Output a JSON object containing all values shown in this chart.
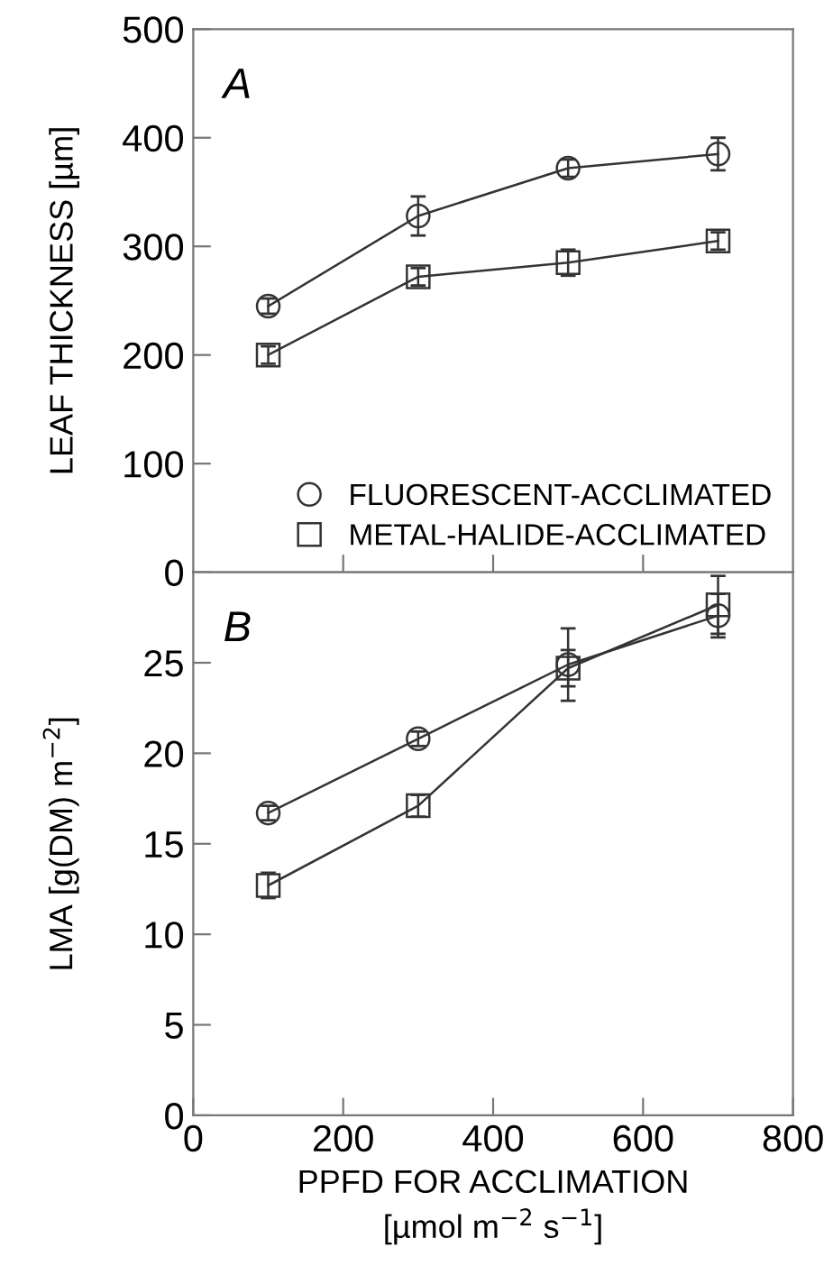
{
  "chart_data": [
    {
      "type": "line",
      "ylabel": "LEAF THICKNESS [µm]",
      "annotations": [
        "A"
      ],
      "x": [
        100,
        300,
        500,
        700
      ],
      "xlim": [
        0,
        800
      ],
      "xticks": [
        {
          "value": 200,
          "label": null
        },
        {
          "value": 400,
          "label": null
        },
        {
          "value": 600,
          "label": null
        }
      ],
      "ylim": [
        0,
        500
      ],
      "yticks": [
        0,
        100,
        200,
        300,
        400,
        500
      ],
      "tick_labels": "y",
      "legend": "bottom",
      "grid": false,
      "line_style": "solid",
      "series": [
        {
          "name": "FLUORESCENT-ACCLIMATED",
          "color": "#333333",
          "marker": "circle",
          "values": [
            245,
            328,
            372,
            385
          ],
          "errors": [
            7,
            18,
            8,
            15
          ]
        },
        {
          "name": "METAL-HALIDE-ACCLIMATED",
          "color": "#333333",
          "marker": "square",
          "values": [
            200,
            272,
            285,
            305
          ],
          "errors": [
            8,
            8,
            12,
            8
          ]
        }
      ]
    },
    {
      "type": "line",
      "ylabel": "LMA [g(DM) m$^{−2}$]",
      "xlabel": "PPFD FOR ACCLIMATION\n[µmol m$^{−2}$ s$^{−1}$]",
      "annotations": [
        "B"
      ],
      "x": [
        100,
        300,
        500,
        700
      ],
      "xlim": [
        0,
        800
      ],
      "xticks": [
        0,
        200,
        400,
        600,
        800
      ],
      "ylim": [
        0,
        30
      ],
      "yticks": [
        0,
        5,
        10,
        15,
        20,
        25
      ],
      "legend": false,
      "grid": false,
      "line_style": "solid",
      "series": [
        {
          "color": "#333333",
          "marker": "circle",
          "values": [
            16.7,
            20.8,
            24.9,
            27.6
          ],
          "errors": [
            0.4,
            0.4,
            2,
            1.2
          ]
        },
        {
          "color": "#333333",
          "marker": "square",
          "values": [
            12.7,
            17.1,
            24.7,
            28.2
          ],
          "errors": [
            0.7,
            0.6,
            1.0,
            1.6
          ]
        }
      ]
    }
  ]
}
